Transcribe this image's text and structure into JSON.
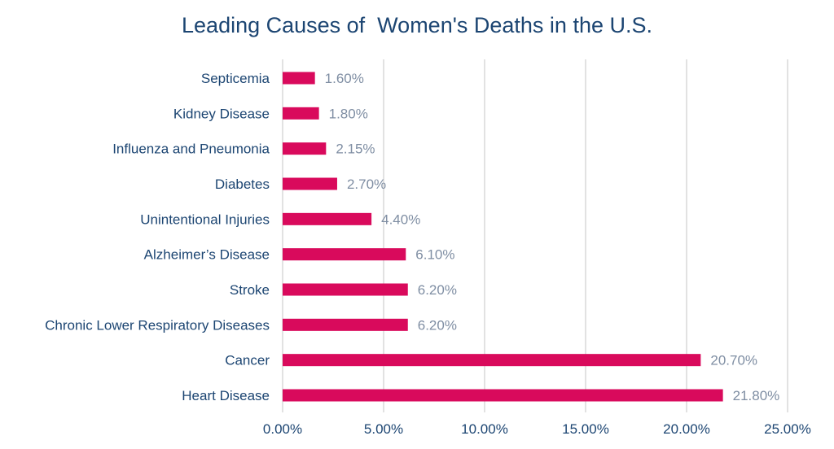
{
  "chart_data": {
    "type": "bar",
    "orientation": "horizontal",
    "title": "Leading Causes of  Women's Deaths in the U.S.",
    "xlabel": "",
    "ylabel": "",
    "categories": [
      "Septicemia",
      "Kidney Disease",
      "Influenza and Pneumonia",
      "Diabetes",
      "Unintentional Injuries",
      "Alzheimer’s Disease",
      "Stroke",
      "Chronic Lower Respiratory Diseases",
      "Cancer",
      "Heart Disease"
    ],
    "values": [
      1.6,
      1.8,
      2.15,
      2.7,
      4.4,
      6.1,
      6.2,
      6.2,
      20.7,
      21.8
    ],
    "data_labels": [
      "1.60%",
      "1.80%",
      "2.15%",
      "2.70%",
      "4.40%",
      "6.10%",
      "6.20%",
      "6.20%",
      "20.70%",
      "21.80%"
    ],
    "xlim": [
      0,
      25
    ],
    "x_ticks": [
      "0.00%",
      "5.00%",
      "10.00%",
      "15.00%",
      "20.00%",
      "25.00%"
    ],
    "grid": "vertical",
    "legend": "none",
    "colors": {
      "bar": "#d90a5c",
      "text": "#1c4572",
      "data_label": "#7f8ea3",
      "grid": "#d9d9d9"
    }
  }
}
